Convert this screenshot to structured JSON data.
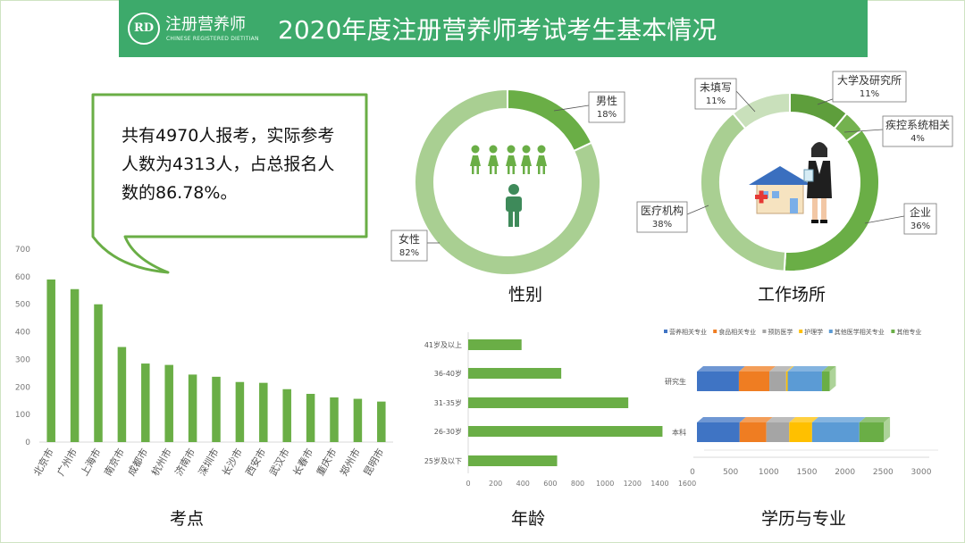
{
  "header": {
    "logo_mark": "RD",
    "logo_text": "注册营养师",
    "logo_sub": "CHINESE REGISTERED DIETITIAN",
    "title": "2020年度注册营养师考试考生基本情况"
  },
  "callout": {
    "text": "共有4970人报考，实际参考人数为4313人，占总报名人数的86.78%。"
  },
  "colors": {
    "header": "#3daa6b",
    "bar": "#6aae46",
    "donut_dark": "#6aae46",
    "donut_light": "#a9cf92",
    "donut_pale": "#c9e0bb"
  },
  "chart_data": [
    {
      "type": "bar",
      "title": "考点",
      "categories": [
        "北京市",
        "广州市",
        "上海市",
        "南京市",
        "成都市",
        "杭州市",
        "济南市",
        "深圳市",
        "长沙市",
        "西安市",
        "武汉市",
        "长春市",
        "重庆市",
        "郑州市",
        "昆明市"
      ],
      "values": [
        590,
        555,
        500,
        345,
        285,
        280,
        245,
        237,
        218,
        215,
        192,
        175,
        162,
        157,
        147
      ],
      "ylim": [
        0,
        700
      ],
      "yticks": [
        "0",
        "100",
        "200",
        "300",
        "400",
        "500",
        "600",
        "700"
      ],
      "grid": false
    },
    {
      "type": "pie",
      "title": "性别",
      "labels": [
        "男性",
        "女性"
      ],
      "values": [
        18,
        82
      ],
      "value_labels": [
        "18%",
        "82%"
      ],
      "colors": [
        "#6aae46",
        "#a9cf92"
      ]
    },
    {
      "type": "pie",
      "title": "工作场所",
      "labels": [
        "大学及研究所",
        "疾控系统相关",
        "企业",
        "医疗机构",
        "未填写"
      ],
      "values": [
        11,
        4,
        36,
        38,
        11
      ],
      "value_labels": [
        "11%",
        "4%",
        "36%",
        "38%",
        "11%"
      ],
      "colors": [
        "#5e9e3c",
        "#74b24f",
        "#6aae46",
        "#a9cf92",
        "#c9e0bb"
      ]
    },
    {
      "type": "bar",
      "orientation": "horizontal",
      "title": "年龄",
      "categories": [
        "41岁及以上",
        "36-40岁",
        "31-35岁",
        "26-30岁",
        "25岁及以下"
      ],
      "values": [
        390,
        680,
        1170,
        1420,
        650
      ],
      "xlim": [
        0,
        1600
      ],
      "xticks": [
        "0",
        "200",
        "400",
        "600",
        "800",
        "1000",
        "1200",
        "1400",
        "1600"
      ]
    },
    {
      "type": "bar",
      "orientation": "horizontal",
      "stacked": true,
      "title": "学历与专业",
      "categories": [
        "研究生",
        "本科"
      ],
      "series": [
        {
          "name": "营养相关专业",
          "color": "#3f74c4",
          "values": [
            550,
            560
          ]
        },
        {
          "name": "食品相关专业",
          "color": "#ef7d22",
          "values": [
            400,
            350
          ]
        },
        {
          "name": "预防医学",
          "color": "#a5a5a5",
          "values": [
            220,
            300
          ]
        },
        {
          "name": "护理学",
          "color": "#ffc000",
          "values": [
            20,
            300
          ]
        },
        {
          "name": "其他医学相关专业",
          "color": "#5b9bd5",
          "values": [
            450,
            620
          ]
        },
        {
          "name": "其他专业",
          "color": "#6aae46",
          "values": [
            100,
            320
          ]
        }
      ],
      "xlim": [
        0,
        3000
      ],
      "xticks": [
        "0",
        "500",
        "1000",
        "1500",
        "2000",
        "2500",
        "3000"
      ]
    }
  ]
}
